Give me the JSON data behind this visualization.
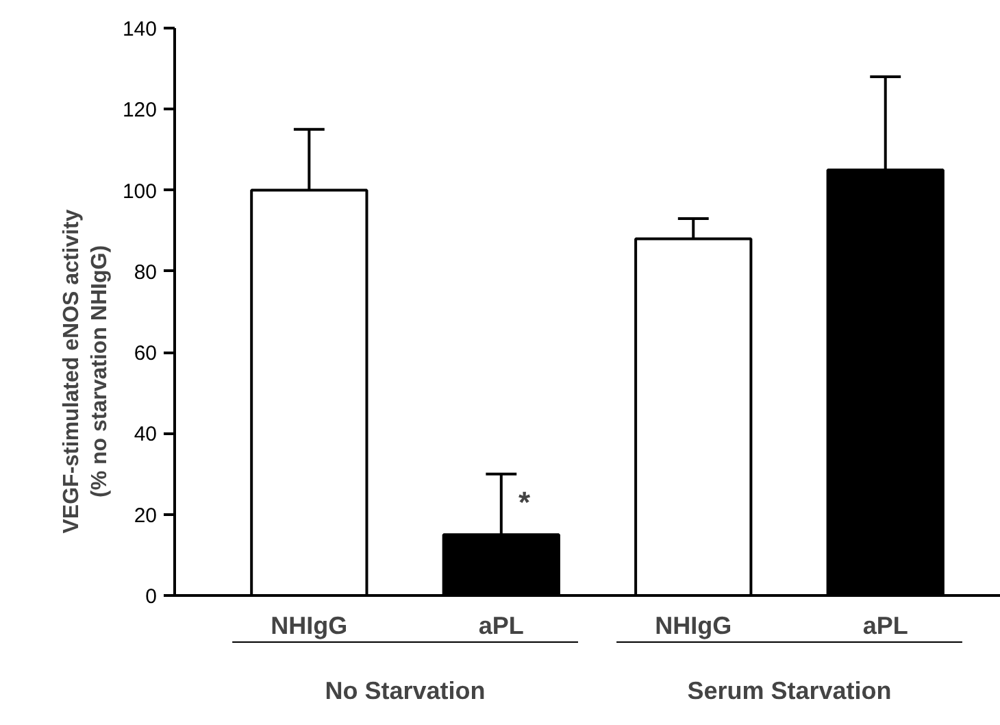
{
  "chart_data": {
    "type": "bar",
    "ylabel": "VEGF-stimulated eNOS activity\n(% no starvation NHIgG)",
    "categories": [
      "NHIgG",
      "aPL",
      "NHIgG",
      "aPL"
    ],
    "values": [
      100,
      15,
      88,
      105
    ],
    "colors": [
      "#ffffff",
      "#000000",
      "#ffffff",
      "#000000"
    ],
    "errors": [
      [
        100,
        115
      ],
      [
        15,
        30
      ],
      [
        88,
        93
      ],
      [
        105,
        128
      ]
    ],
    "ylim": [
      0,
      140
    ],
    "yticks": [
      0,
      20,
      40,
      60,
      80,
      100,
      120,
      140
    ],
    "grid": false,
    "annotations": [
      {
        "text": "*",
        "x": "aPL",
        "y": 23
      },
      "No Starvation",
      "Serum Starvation"
    ]
  }
}
